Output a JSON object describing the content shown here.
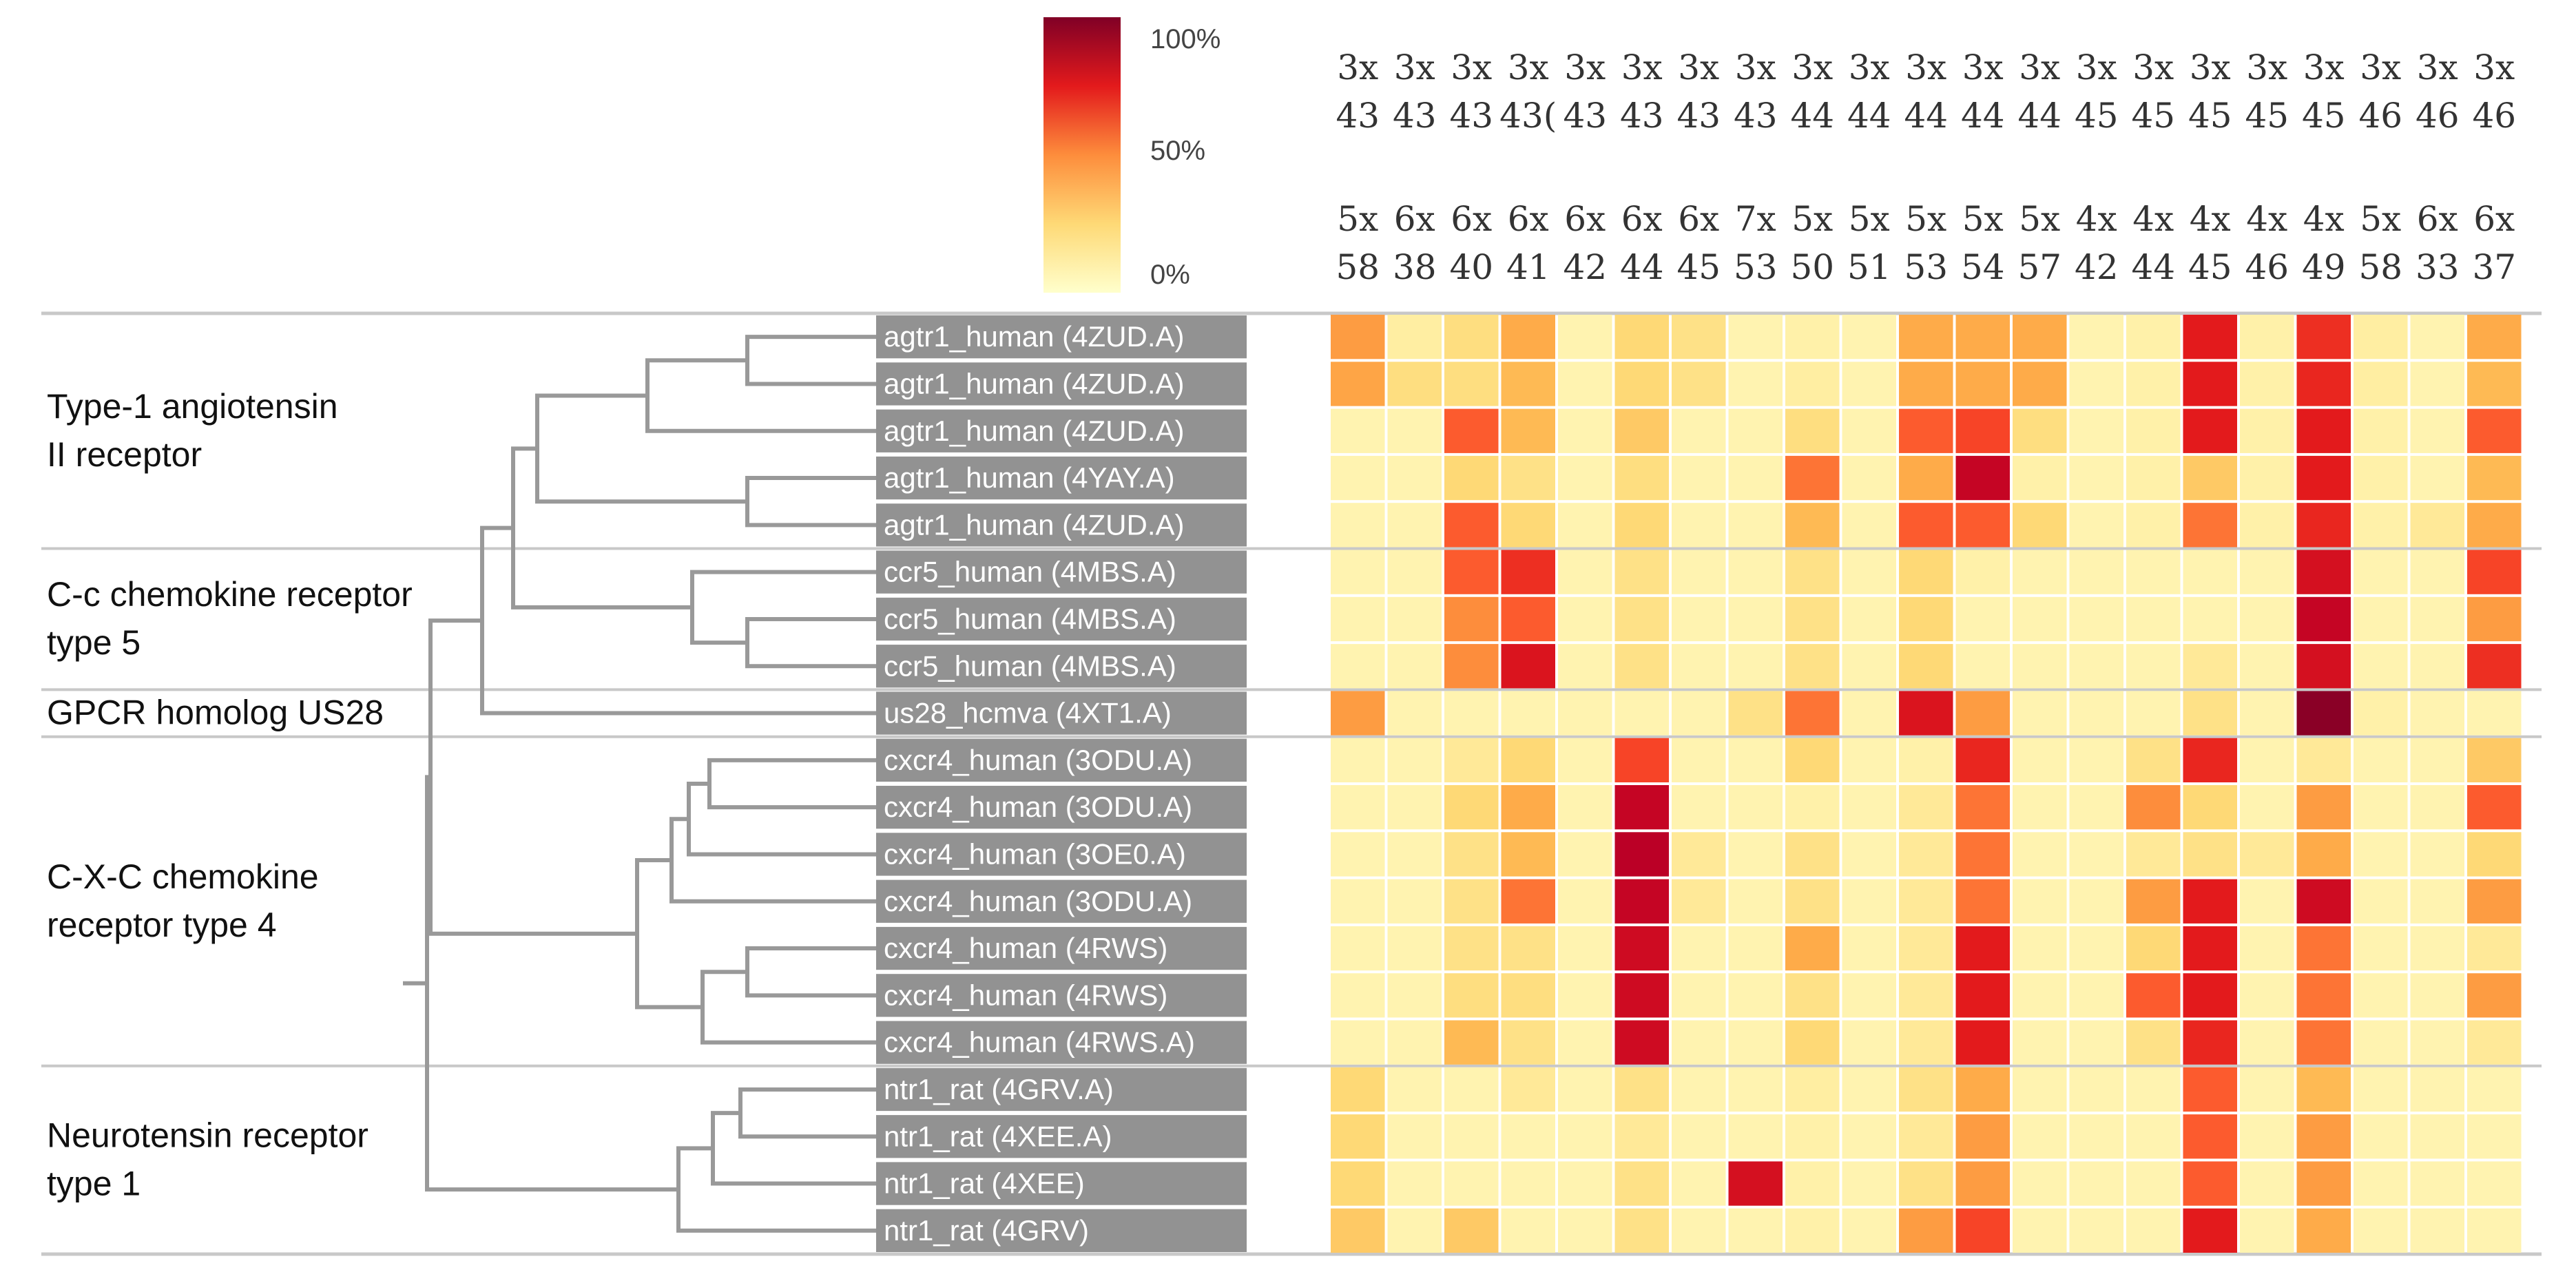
{
  "chart_data": {
    "type": "heatmap",
    "title": "",
    "colorbar": {
      "labels": [
        "100%",
        "50%",
        "0%"
      ],
      "colors": [
        "#ffffcc",
        "#ffeda0",
        "#fed976",
        "#feb24c",
        "#fd8d3c",
        "#fc4e2a",
        "#e31a1c",
        "#bd0026",
        "#800026"
      ]
    },
    "columns_top": [
      "3x\n43",
      "3x\n43",
      "3x\n43",
      "3x\n43(",
      "3x\n43",
      "3x\n43",
      "3x\n43",
      "3x\n43",
      "3x\n44",
      "3x\n44",
      "3x\n44",
      "3x\n44",
      "3x\n44",
      "3x\n45",
      "3x\n45",
      "3x\n45",
      "3x\n45",
      "3x\n45",
      "3x\n46",
      "3x\n46",
      "3x\n46"
    ],
    "columns_bottom": [
      "5x\n58",
      "6x\n38",
      "6x\n40",
      "6x\n41",
      "6x\n42",
      "6x\n44",
      "6x\n45",
      "7x\n53",
      "5x\n50",
      "5x\n51",
      "5x\n53",
      "5x\n54",
      "5x\n57",
      "4x\n42",
      "4x\n44",
      "4x\n45",
      "4x\n46",
      "4x\n49",
      "5x\n58",
      "6x\n33",
      "6x\n37"
    ],
    "rows": [
      "agtr1_human (4ZUD.A)",
      "agtr1_human (4ZUD.A)",
      "agtr1_human (4ZUD.A)",
      "agtr1_human (4YAY.A)",
      "agtr1_human (4ZUD.A)",
      "ccr5_human (4MBS.A)",
      "ccr5_human (4MBS.A)",
      "ccr5_human (4MBS.A)",
      "us28_hcmva (4XT1.A)",
      "cxcr4_human (3ODU.A)",
      "cxcr4_human (3ODU.A)",
      "cxcr4_human (3OE0.A)",
      "cxcr4_human (3ODU.A)",
      "cxcr4_human (4RWS)",
      "cxcr4_human (4RWS)",
      "cxcr4_human (4RWS.A)",
      "ntr1_rat (4GRV.A)",
      "ntr1_rat (4XEE.A)",
      "ntr1_rat (4XEE)",
      "ntr1_rat (4GRV)"
    ],
    "groups": [
      {
        "label": "Type-1 angiotensin\nII receptor",
        "start": 0,
        "end": 4
      },
      {
        "label": "C-c chemokine receptor\ntype 5",
        "start": 5,
        "end": 7
      },
      {
        "label": "GPCR homolog US28",
        "start": 8,
        "end": 8
      },
      {
        "label": "C-X-C chemokine\nreceptor type 4",
        "start": 9,
        "end": 15
      },
      {
        "label": "Neurotensin receptor\ntype 1",
        "start": 16,
        "end": 19
      }
    ],
    "values": [
      [
        0.45,
        0.12,
        0.22,
        0.4,
        0.08,
        0.25,
        0.2,
        0.08,
        0.1,
        0.08,
        0.4,
        0.4,
        0.4,
        0.08,
        0.1,
        0.75,
        0.1,
        0.7,
        0.12,
        0.08,
        0.4
      ],
      [
        0.42,
        0.22,
        0.22,
        0.35,
        0.08,
        0.25,
        0.2,
        0.08,
        0.12,
        0.08,
        0.4,
        0.4,
        0.4,
        0.08,
        0.1,
        0.75,
        0.1,
        0.72,
        0.12,
        0.08,
        0.35
      ],
      [
        0.08,
        0.08,
        0.6,
        0.35,
        0.08,
        0.3,
        0.08,
        0.08,
        0.22,
        0.08,
        0.6,
        0.65,
        0.22,
        0.08,
        0.1,
        0.75,
        0.1,
        0.75,
        0.1,
        0.08,
        0.6
      ],
      [
        0.08,
        0.08,
        0.25,
        0.2,
        0.08,
        0.22,
        0.08,
        0.08,
        0.55,
        0.08,
        0.4,
        0.85,
        0.1,
        0.08,
        0.1,
        0.3,
        0.1,
        0.75,
        0.1,
        0.08,
        0.35
      ],
      [
        0.08,
        0.08,
        0.6,
        0.25,
        0.08,
        0.25,
        0.08,
        0.08,
        0.35,
        0.08,
        0.6,
        0.6,
        0.25,
        0.08,
        0.1,
        0.55,
        0.1,
        0.72,
        0.1,
        0.15,
        0.4
      ],
      [
        0.08,
        0.08,
        0.6,
        0.7,
        0.08,
        0.2,
        0.08,
        0.08,
        0.2,
        0.08,
        0.25,
        0.1,
        0.08,
        0.08,
        0.08,
        0.08,
        0.08,
        0.8,
        0.08,
        0.08,
        0.65
      ],
      [
        0.08,
        0.08,
        0.5,
        0.6,
        0.08,
        0.2,
        0.08,
        0.08,
        0.2,
        0.08,
        0.25,
        0.08,
        0.08,
        0.08,
        0.08,
        0.08,
        0.08,
        0.85,
        0.08,
        0.08,
        0.45
      ],
      [
        0.08,
        0.08,
        0.5,
        0.78,
        0.08,
        0.2,
        0.08,
        0.08,
        0.2,
        0.08,
        0.25,
        0.08,
        0.08,
        0.08,
        0.08,
        0.15,
        0.08,
        0.8,
        0.08,
        0.08,
        0.7
      ],
      [
        0.45,
        0.08,
        0.08,
        0.08,
        0.08,
        0.08,
        0.08,
        0.2,
        0.55,
        0.08,
        0.78,
        0.45,
        0.08,
        0.08,
        0.08,
        0.2,
        0.08,
        0.98,
        0.1,
        0.08,
        0.08
      ],
      [
        0.08,
        0.08,
        0.15,
        0.25,
        0.08,
        0.65,
        0.08,
        0.08,
        0.25,
        0.08,
        0.1,
        0.72,
        0.08,
        0.08,
        0.2,
        0.72,
        0.08,
        0.15,
        0.08,
        0.08,
        0.3
      ],
      [
        0.08,
        0.08,
        0.25,
        0.4,
        0.08,
        0.85,
        0.08,
        0.08,
        0.1,
        0.08,
        0.15,
        0.55,
        0.08,
        0.08,
        0.5,
        0.25,
        0.08,
        0.45,
        0.08,
        0.08,
        0.6
      ],
      [
        0.08,
        0.08,
        0.2,
        0.35,
        0.08,
        0.88,
        0.15,
        0.08,
        0.2,
        0.08,
        0.15,
        0.55,
        0.08,
        0.08,
        0.15,
        0.2,
        0.15,
        0.4,
        0.08,
        0.08,
        0.25
      ],
      [
        0.08,
        0.08,
        0.2,
        0.55,
        0.08,
        0.85,
        0.15,
        0.08,
        0.2,
        0.08,
        0.15,
        0.55,
        0.08,
        0.08,
        0.45,
        0.75,
        0.08,
        0.82,
        0.08,
        0.08,
        0.45
      ],
      [
        0.08,
        0.08,
        0.2,
        0.2,
        0.08,
        0.82,
        0.08,
        0.08,
        0.4,
        0.08,
        0.15,
        0.75,
        0.08,
        0.08,
        0.25,
        0.75,
        0.08,
        0.55,
        0.08,
        0.08,
        0.15
      ],
      [
        0.08,
        0.08,
        0.22,
        0.22,
        0.08,
        0.82,
        0.08,
        0.08,
        0.2,
        0.08,
        0.15,
        0.75,
        0.08,
        0.08,
        0.6,
        0.75,
        0.08,
        0.55,
        0.08,
        0.08,
        0.45
      ],
      [
        0.08,
        0.08,
        0.35,
        0.2,
        0.08,
        0.82,
        0.08,
        0.08,
        0.25,
        0.08,
        0.15,
        0.75,
        0.08,
        0.08,
        0.2,
        0.72,
        0.08,
        0.55,
        0.08,
        0.08,
        0.15
      ],
      [
        0.25,
        0.08,
        0.08,
        0.15,
        0.08,
        0.2,
        0.08,
        0.08,
        0.12,
        0.08,
        0.2,
        0.4,
        0.08,
        0.08,
        0.08,
        0.6,
        0.08,
        0.35,
        0.08,
        0.08,
        0.08
      ],
      [
        0.25,
        0.08,
        0.08,
        0.08,
        0.08,
        0.15,
        0.08,
        0.08,
        0.1,
        0.08,
        0.15,
        0.45,
        0.08,
        0.08,
        0.08,
        0.6,
        0.08,
        0.45,
        0.08,
        0.08,
        0.08
      ],
      [
        0.25,
        0.08,
        0.08,
        0.08,
        0.08,
        0.2,
        0.08,
        0.8,
        0.1,
        0.08,
        0.2,
        0.45,
        0.08,
        0.08,
        0.08,
        0.6,
        0.08,
        0.45,
        0.08,
        0.08,
        0.08
      ],
      [
        0.3,
        0.08,
        0.3,
        0.08,
        0.08,
        0.2,
        0.08,
        0.08,
        0.1,
        0.08,
        0.45,
        0.65,
        0.08,
        0.08,
        0.08,
        0.75,
        0.08,
        0.4,
        0.08,
        0.08,
        0.08
      ]
    ]
  }
}
